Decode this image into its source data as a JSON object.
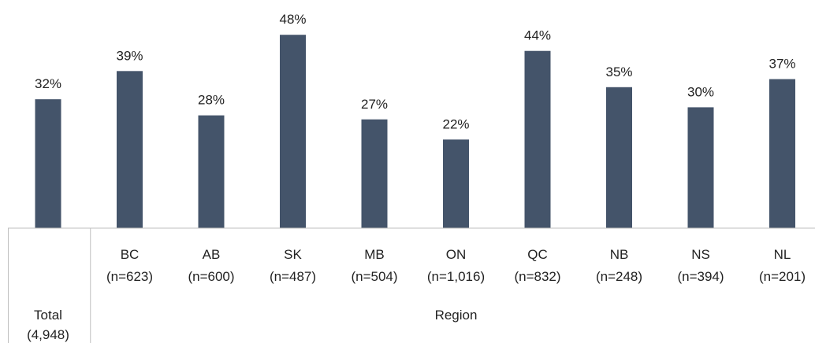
{
  "chart_data": {
    "type": "bar",
    "title": "",
    "xlabel": "",
    "ylabel": "",
    "bar_color": "#44546A",
    "ylim": [
      0,
      60
    ],
    "grid": false,
    "legend": "none",
    "groups": [
      {
        "label": "Total",
        "sublabel": "(4,948)",
        "start": 0,
        "count": 1
      },
      {
        "label": "Region",
        "start": 1,
        "count": 9
      }
    ],
    "categories": [
      {
        "name": "",
        "n": ""
      },
      {
        "name": "BC",
        "n": "(n=623)"
      },
      {
        "name": "AB",
        "n": "(n=600)"
      },
      {
        "name": "SK",
        "n": "(n=487)"
      },
      {
        "name": "MB",
        "n": "(n=504)"
      },
      {
        "name": "ON",
        "n": "(n=1,016)"
      },
      {
        "name": "QC",
        "n": "(n=832)"
      },
      {
        "name": "NB",
        "n": "(n=248)"
      },
      {
        "name": "NS",
        "n": "(n=394)"
      },
      {
        "name": "NL",
        "n": "(n=201)"
      }
    ],
    "values": [
      32,
      39,
      28,
      48,
      27,
      22,
      44,
      35,
      30,
      37
    ],
    "value_labels": [
      "32%",
      "39%",
      "28%",
      "48%",
      "27%",
      "22%",
      "44%",
      "35%",
      "30%",
      "37%"
    ]
  }
}
